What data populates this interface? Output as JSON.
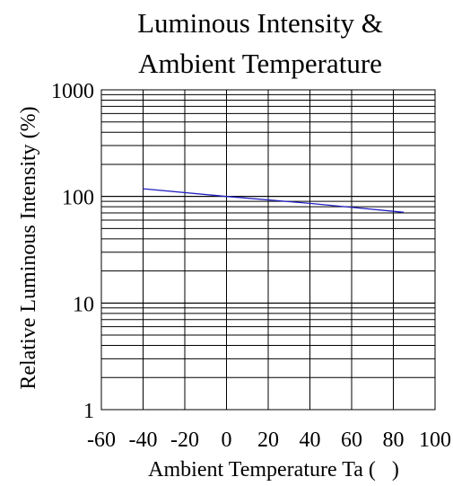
{
  "chart_data": {
    "type": "line",
    "title_lines": [
      "Luminous Intensity &",
      "Ambient Temperature"
    ],
    "xlabel": "Ambient Temperature Ta (   )",
    "ylabel": "Relative Luminous Intensity (%)",
    "x_ticks": [
      "-60",
      "-40",
      "-20",
      "0",
      "20",
      "40",
      "60",
      "80",
      "100"
    ],
    "y_ticks": [
      "1",
      "10",
      "100",
      "1000"
    ],
    "xlim": [
      -60,
      100
    ],
    "ylim": [
      1,
      1000
    ],
    "y_scale": "log",
    "grid": true,
    "series": [
      {
        "color": "#2020c0",
        "x": [
          -40,
          0,
          40,
          85
        ],
        "y": [
          118,
          100,
          86,
          71
        ]
      }
    ]
  }
}
